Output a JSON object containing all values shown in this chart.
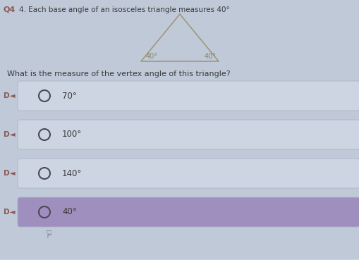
{
  "question_number": "Q4",
  "question_text": "4. Each base angle of an isosceles triangle measures 40°",
  "sub_question": "What is the measure of the vertex angle of this triangle?",
  "triangle_base_label_left": "40°",
  "triangle_base_label_right": "40°",
  "options": [
    "70°",
    "100°",
    "140°",
    "40°"
  ],
  "selected_index": 3,
  "bg_color": "#bfc9d8",
  "option_bg_normal": "#cdd5e2",
  "option_bg_selected": "#9f8fbe",
  "option_border_color": "#aab5c8",
  "triangle_color": "#a09878",
  "text_color": "#3a3a3a",
  "label_color": "#888870",
  "q_label_color": "#8a5858",
  "q_side_label": "D◄"
}
